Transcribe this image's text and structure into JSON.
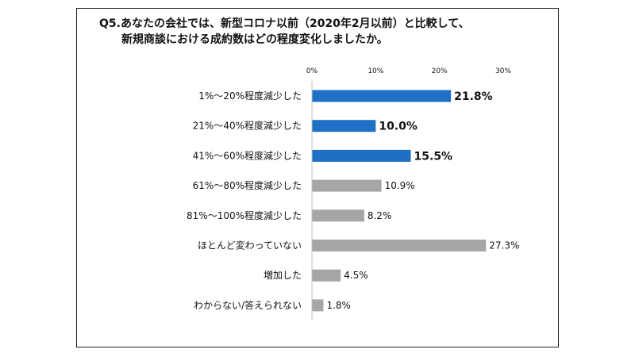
{
  "title": {
    "line1": "Q5.あなたの会社では、新型コロナ以前（2020年2月以前）と比較して、",
    "line2": "新規商談における成約数はどの程度変化しましたか。"
  },
  "chart_data": {
    "type": "bar",
    "orientation": "horizontal",
    "categories": [
      "1%～20%程度減少した",
      "21%～40%程度減少した",
      "41%～60%程度減少した",
      "61%～80%程度減少した",
      "81%～100%程度減少した",
      "ほとんど変わっていない",
      "増加した",
      "わからない/答えられない"
    ],
    "values": [
      21.8,
      10.0,
      15.5,
      10.9,
      8.2,
      27.3,
      4.5,
      1.8
    ],
    "value_labels": [
      "21.8%",
      "10.0%",
      "15.5%",
      "10.9%",
      "8.2%",
      "27.3%",
      "4.5%",
      "1.8%"
    ],
    "highlighted": [
      true,
      true,
      true,
      false,
      false,
      false,
      false,
      false
    ],
    "xlim": [
      0,
      30
    ],
    "xticks": [
      0,
      10,
      20,
      30
    ],
    "xtick_labels": [
      "0%",
      "10%",
      "20%",
      "30%"
    ],
    "xaxis_position": "top",
    "grid": false,
    "colors": {
      "highlight": "#1f6fc5",
      "default": "#a6a6a6"
    }
  }
}
